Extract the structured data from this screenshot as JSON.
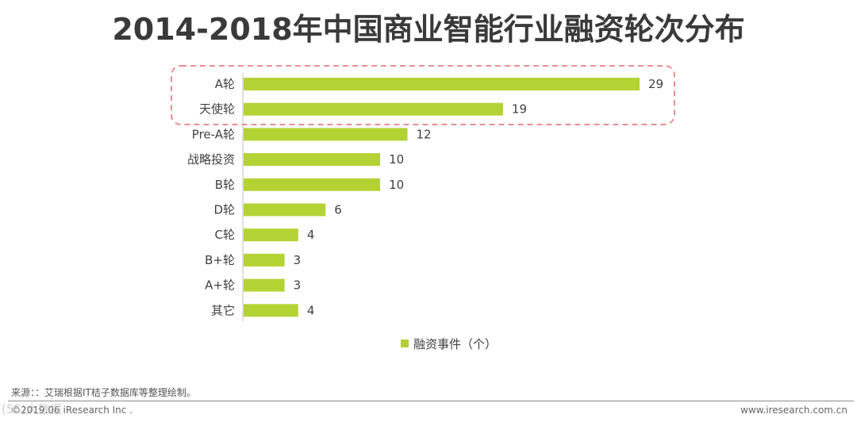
{
  "title": "2014-2018年中国商业智能行业融资轮次分布",
  "chart_data": {
    "type": "bar",
    "orientation": "horizontal",
    "categories": [
      "A轮",
      "天使轮",
      "Pre-A轮",
      "战略投资",
      "B轮",
      "D轮",
      "C轮",
      "B+轮",
      "A+轮",
      "其它"
    ],
    "values": [
      29,
      19,
      12,
      10,
      10,
      6,
      4,
      3,
      3,
      4
    ],
    "series_name": "融资事件（个）",
    "highlighted_categories": [
      "A轮",
      "天使轮"
    ],
    "xlim": [
      0,
      29
    ],
    "colors": {
      "bar": "#b3d334",
      "highlight": "#e98f8f",
      "axis": "#bfbfbf",
      "text": "#404040"
    }
  },
  "footer": {
    "source": "来源：：艾瑞根据IT桔子数据库等整理绘制。",
    "copyright": "©2019.06 iResearch Inc .",
    "website": "www.iresearch.com.cn",
    "watermark": "(55)大数据"
  }
}
